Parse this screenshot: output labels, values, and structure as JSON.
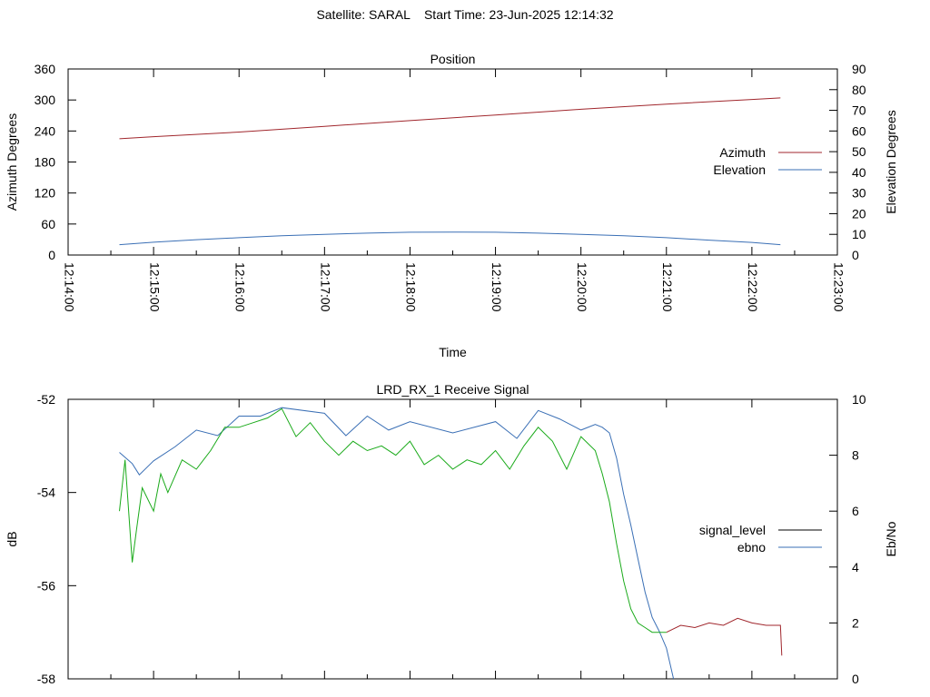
{
  "title": "Satellite: SARAL    Start Time: 23-Jun-2025 12:14:32",
  "chart_data": [
    {
      "type": "line",
      "title": "Position",
      "xlabel": "Time",
      "ylabel": "Azimuth Degrees",
      "y2label": "Elevation Degrees",
      "xlim": [
        "12:14:00",
        "12:23:00"
      ],
      "ylim": [
        0,
        360
      ],
      "y2lim": [
        0,
        90
      ],
      "x_ticks": [
        "12:14:00",
        "12:15:00",
        "12:16:00",
        "12:17:00",
        "12:18:00",
        "12:19:00",
        "12:20:00",
        "12:21:00",
        "12:22:00",
        "12:23:00"
      ],
      "y_ticks": [
        "0",
        "60",
        "120",
        "180",
        "240",
        "300",
        "360"
      ],
      "y2_ticks": [
        "0",
        "10",
        "20",
        "30",
        "40",
        "50",
        "60",
        "70",
        "80",
        "90"
      ],
      "legend_position": "right",
      "series": [
        {
          "name": "Azimuth",
          "axis": "left",
          "color": "#a0262c",
          "x": [
            "12:14:36",
            "12:15:00",
            "12:16:00",
            "12:17:00",
            "12:18:00",
            "12:19:00",
            "12:20:00",
            "12:21:00",
            "12:22:00",
            "12:22:20"
          ],
          "values": [
            225,
            229,
            238,
            249,
            260,
            271,
            282,
            292,
            301,
            304
          ]
        },
        {
          "name": "Elevation",
          "axis": "right",
          "color": "#3a6fb5",
          "x": [
            "12:14:36",
            "12:15:00",
            "12:15:30",
            "12:16:00",
            "12:16:30",
            "12:17:00",
            "12:17:30",
            "12:18:00",
            "12:18:30",
            "12:19:00",
            "12:19:30",
            "12:20:00",
            "12:20:30",
            "12:21:00",
            "12:21:30",
            "12:22:00",
            "12:22:20"
          ],
          "values": [
            5,
            6.2,
            7.4,
            8.4,
            9.3,
            10,
            10.6,
            11,
            11.1,
            11,
            10.6,
            10,
            9.3,
            8.4,
            7.2,
            6.1,
            5
          ]
        }
      ]
    },
    {
      "type": "line",
      "title": "LRD_RX_1 Receive Signal",
      "xlabel": "",
      "ylabel": "dB",
      "y2label": "Eb/No",
      "xlim": [
        "12:14:00",
        "12:23:00"
      ],
      "ylim": [
        -58,
        -52
      ],
      "y2lim": [
        0,
        10
      ],
      "y_ticks": [
        "-52",
        "-54",
        "-56",
        "-58"
      ],
      "y2_ticks": [
        "0",
        "2",
        "4",
        "6",
        "8",
        "10"
      ],
      "legend_position": "right",
      "series": [
        {
          "name": "signal_level",
          "axis": "left",
          "color": "#a0262c",
          "x": [
            "12:21:00",
            "12:21:10",
            "12:21:20",
            "12:21:30",
            "12:21:40",
            "12:21:50",
            "12:22:00",
            "12:22:10",
            "12:22:20",
            "12:22:21"
          ],
          "values": [
            -57.0,
            -56.85,
            -56.9,
            -56.8,
            -56.85,
            -56.7,
            -56.8,
            -56.85,
            -56.85,
            -57.5
          ]
        },
        {
          "name": "ebno",
          "axis": "right",
          "color": "#3a6fb5",
          "x": [
            "12:14:36",
            "12:14:45",
            "12:14:50",
            "12:15:00",
            "12:15:15",
            "12:15:30",
            "12:15:45",
            "12:16:00",
            "12:16:15",
            "12:16:30",
            "12:17:00",
            "12:17:15",
            "12:17:30",
            "12:17:45",
            "12:18:00",
            "12:18:30",
            "12:19:00",
            "12:19:15",
            "12:19:30",
            "12:19:45",
            "12:20:00",
            "12:20:10",
            "12:20:15",
            "12:20:20",
            "12:20:25",
            "12:20:30",
            "12:20:35",
            "12:20:40",
            "12:20:45",
            "12:20:50",
            "12:20:55",
            "12:21:00",
            "12:21:05"
          ],
          "values": [
            8.1,
            7.7,
            7.3,
            7.8,
            8.3,
            8.9,
            8.7,
            9.4,
            9.4,
            9.7,
            9.5,
            8.7,
            9.4,
            8.9,
            9.2,
            8.8,
            9.2,
            8.6,
            9.6,
            9.3,
            8.9,
            9.1,
            9.0,
            8.8,
            7.9,
            6.6,
            5.5,
            4.3,
            3.1,
            2.2,
            1.7,
            1.1,
            0
          ]
        },
        {
          "name": "",
          "axis": "left",
          "color": "#1aaa1a",
          "x": [
            "12:14:36",
            "12:14:40",
            "12:14:45",
            "12:14:48",
            "12:14:52",
            "12:15:00",
            "12:15:05",
            "12:15:10",
            "12:15:20",
            "12:15:30",
            "12:15:40",
            "12:15:50",
            "12:16:00",
            "12:16:10",
            "12:16:20",
            "12:16:30",
            "12:16:40",
            "12:16:50",
            "12:17:00",
            "12:17:10",
            "12:17:20",
            "12:17:30",
            "12:17:40",
            "12:17:50",
            "12:18:00",
            "12:18:10",
            "12:18:20",
            "12:18:30",
            "12:18:40",
            "12:18:50",
            "12:19:00",
            "12:19:10",
            "12:19:20",
            "12:19:30",
            "12:19:40",
            "12:19:50",
            "12:20:00",
            "12:20:10",
            "12:20:15",
            "12:20:20",
            "12:20:25",
            "12:20:30",
            "12:20:35",
            "12:20:40",
            "12:20:45",
            "12:20:50",
            "12:20:55",
            "12:21:00"
          ],
          "values": [
            -54.4,
            -53.3,
            -55.5,
            -54.8,
            -53.9,
            -54.4,
            -53.6,
            -54.0,
            -53.3,
            -53.5,
            -53.1,
            -52.6,
            -52.6,
            -52.5,
            -52.4,
            -52.2,
            -52.8,
            -52.5,
            -52.9,
            -53.2,
            -52.9,
            -53.1,
            -53.0,
            -53.2,
            -52.9,
            -53.4,
            -53.2,
            -53.5,
            -53.3,
            -53.4,
            -53.1,
            -53.5,
            -53.0,
            -52.6,
            -52.9,
            -53.5,
            -52.8,
            -53.1,
            -53.6,
            -54.2,
            -55.1,
            -55.9,
            -56.5,
            -56.8,
            -56.9,
            -57.0,
            -57.0,
            -57.0
          ]
        }
      ]
    }
  ]
}
